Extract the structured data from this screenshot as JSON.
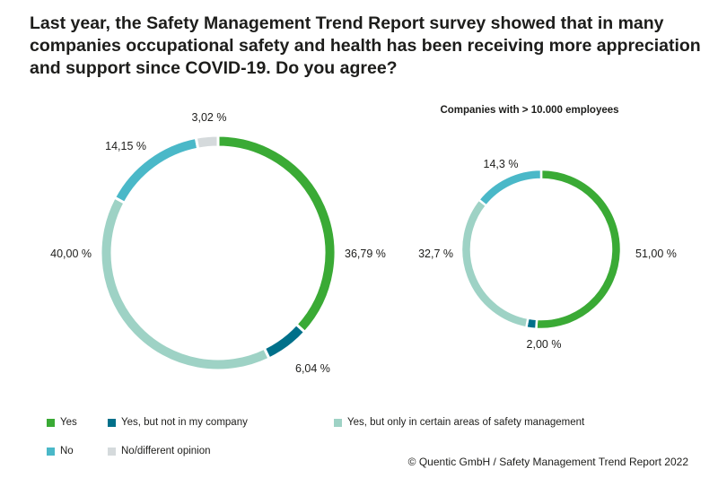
{
  "title": "Last year, the Safety Management Trend Report survey showed that in many companies occupational safety and health has been receiving more appreciation and support since COVID-19. Do you agree?",
  "colors": {
    "yes": "#3aaa35",
    "yes_not_my_company": "#00708a",
    "yes_certain_areas": "#9ed2c5",
    "no": "#4ab8c8",
    "no_opinion": "#d5dadc"
  },
  "legend": [
    {
      "key": "yes",
      "label": "Yes"
    },
    {
      "key": "yes_not_my_company",
      "label": "Yes, but not in my company"
    },
    {
      "key": "yes_certain_areas",
      "label": "Yes, but only in certain areas of safety management"
    },
    {
      "key": "no",
      "label": "No"
    },
    {
      "key": "no_opinion",
      "label": "No/different opinion"
    }
  ],
  "source": "© Quentic GmbH / Safety Management Trend Report 2022",
  "chart_data": [
    {
      "type": "pie",
      "variant": "donut",
      "title": "",
      "categories": [
        "Yes",
        "Yes, but not in my company",
        "Yes, but only in certain areas of safety management",
        "No",
        "No/different opinion"
      ],
      "keys": [
        "yes",
        "yes_not_my_company",
        "yes_certain_areas",
        "no",
        "no_opinion"
      ],
      "values": [
        36.79,
        6.04,
        40.0,
        14.15,
        3.02
      ],
      "labels": [
        "36,79 %",
        "6,04 %",
        "40,00 %",
        "14,15 %",
        "3,02 %"
      ]
    },
    {
      "type": "pie",
      "variant": "donut",
      "title": "Companies with > 10.000 employees",
      "categories": [
        "Yes",
        "Yes, but not in my company",
        "Yes, but only in certain areas of safety management",
        "No"
      ],
      "keys": [
        "yes",
        "yes_not_my_company",
        "yes_certain_areas",
        "no"
      ],
      "values": [
        51.0,
        2.0,
        32.7,
        14.3
      ],
      "labels": [
        "51,00 %",
        "2,00 %",
        "32,7 %",
        "14,3 %"
      ]
    }
  ]
}
